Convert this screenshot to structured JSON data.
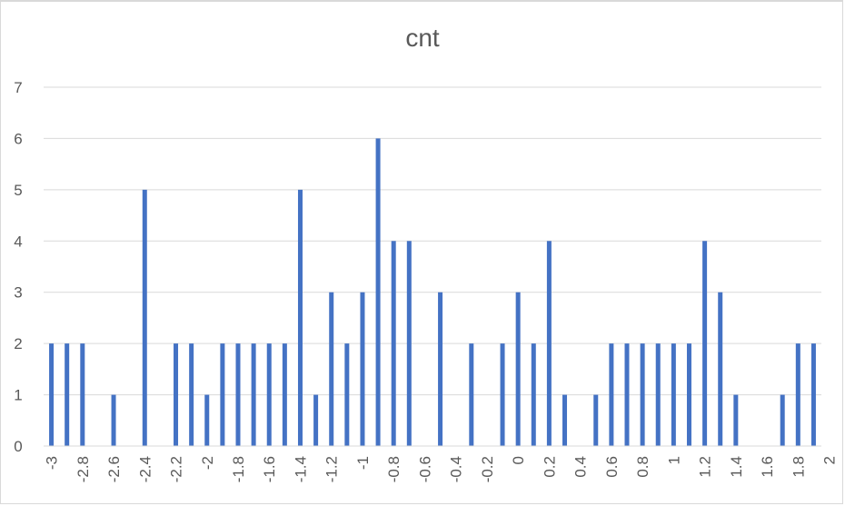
{
  "chart_data": {
    "type": "bar",
    "title": "cnt",
    "xlabel": "",
    "ylabel": "",
    "ylim": [
      0,
      7
    ],
    "y_ticks": [
      "0",
      "1",
      "2",
      "3",
      "4",
      "5",
      "6",
      "7"
    ],
    "x_ticks": [
      "-3",
      "-2.8",
      "-2.6",
      "-2.4",
      "-2.2",
      "-2",
      "-1.8",
      "-1.6",
      "-1.4",
      "-1.2",
      "-1",
      "-0.8",
      "-0.6",
      "-0.4",
      "-0.2",
      "0",
      "0.2",
      "0.4",
      "0.6",
      "0.8",
      "1",
      "1.2",
      "1.4",
      "1.6",
      "1.8",
      "2"
    ],
    "x_range": [
      -3,
      2
    ],
    "x_step": 0.1,
    "values": [
      2,
      2,
      2,
      0,
      1,
      0,
      5,
      0,
      2,
      2,
      1,
      2,
      2,
      2,
      2,
      2,
      5,
      1,
      3,
      2,
      3,
      6,
      4,
      4,
      0,
      3,
      0,
      2,
      0,
      2,
      3,
      2,
      4,
      1,
      0,
      1,
      2,
      2,
      2,
      2,
      2,
      2,
      4,
      3,
      1,
      0,
      0,
      1,
      2,
      2
    ],
    "grid": true,
    "legend": "none",
    "bar_color": "#4472c4"
  }
}
